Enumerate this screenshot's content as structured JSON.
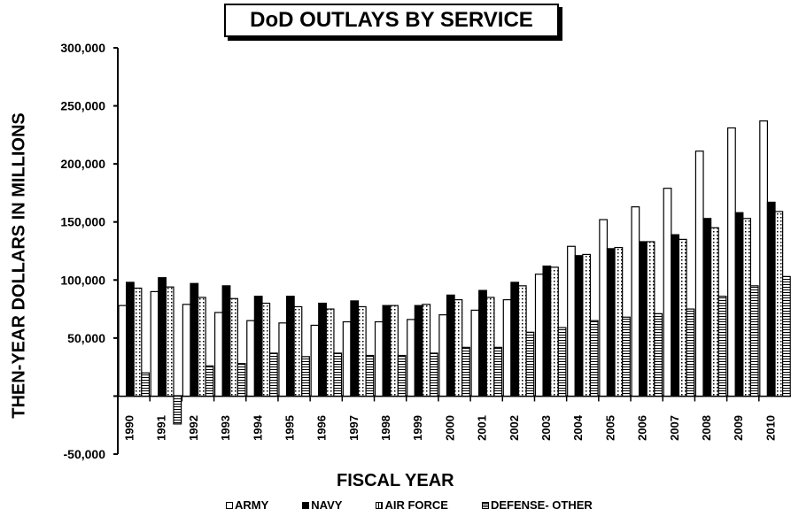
{
  "chart_data": {
    "type": "bar",
    "title": "DoD OUTLAYS BY SERVICE",
    "xlabel": "FISCAL YEAR",
    "ylabel": "THEN-YEAR DOLLARS IN MILLIONS",
    "ylim": [
      -50000,
      300000
    ],
    "yticks": [
      "300,000",
      "250,000",
      "200,000",
      "150,000",
      "100,000",
      "50,000",
      "-50,000"
    ],
    "ytick_values": [
      300000,
      250000,
      200000,
      150000,
      100000,
      50000,
      -50000
    ],
    "categories": [
      "1990",
      "1991",
      "1992",
      "1993",
      "1994",
      "1995",
      "1996",
      "1997",
      "1998",
      "1999",
      "2000",
      "2001",
      "2002",
      "2003",
      "2004",
      "2005",
      "2006",
      "2007",
      "2008",
      "2009",
      "2010"
    ],
    "series": [
      {
        "name": "ARMY",
        "pattern": "white",
        "values": [
          78000,
          90000,
          79000,
          72000,
          65000,
          63000,
          61000,
          64000,
          64000,
          66000,
          70000,
          74000,
          83000,
          105000,
          129000,
          152000,
          163000,
          179000,
          211000,
          231000,
          237000
        ]
      },
      {
        "name": "NAVY",
        "pattern": "black",
        "values": [
          98000,
          102000,
          97000,
          95000,
          86000,
          86000,
          80000,
          82000,
          78000,
          78000,
          87000,
          91000,
          98000,
          112000,
          121000,
          127000,
          133000,
          139000,
          153000,
          158000,
          167000
        ]
      },
      {
        "name": "AIR FORCE",
        "pattern": "dotted",
        "values": [
          93000,
          94000,
          85000,
          84000,
          80000,
          77000,
          75000,
          77000,
          78000,
          79000,
          83000,
          85000,
          95000,
          111000,
          122000,
          128000,
          133000,
          135000,
          145000,
          153000,
          159000
        ]
      },
      {
        "name": "DEFENSE- OTHER",
        "pattern": "hatched",
        "values": [
          20000,
          -24000,
          26000,
          28000,
          37000,
          34000,
          37000,
          35000,
          35000,
          37000,
          42000,
          42000,
          55000,
          59000,
          65000,
          68000,
          71000,
          75000,
          86000,
          95000,
          103000
        ]
      }
    ],
    "legend_position": "bottom",
    "grid": false
  }
}
